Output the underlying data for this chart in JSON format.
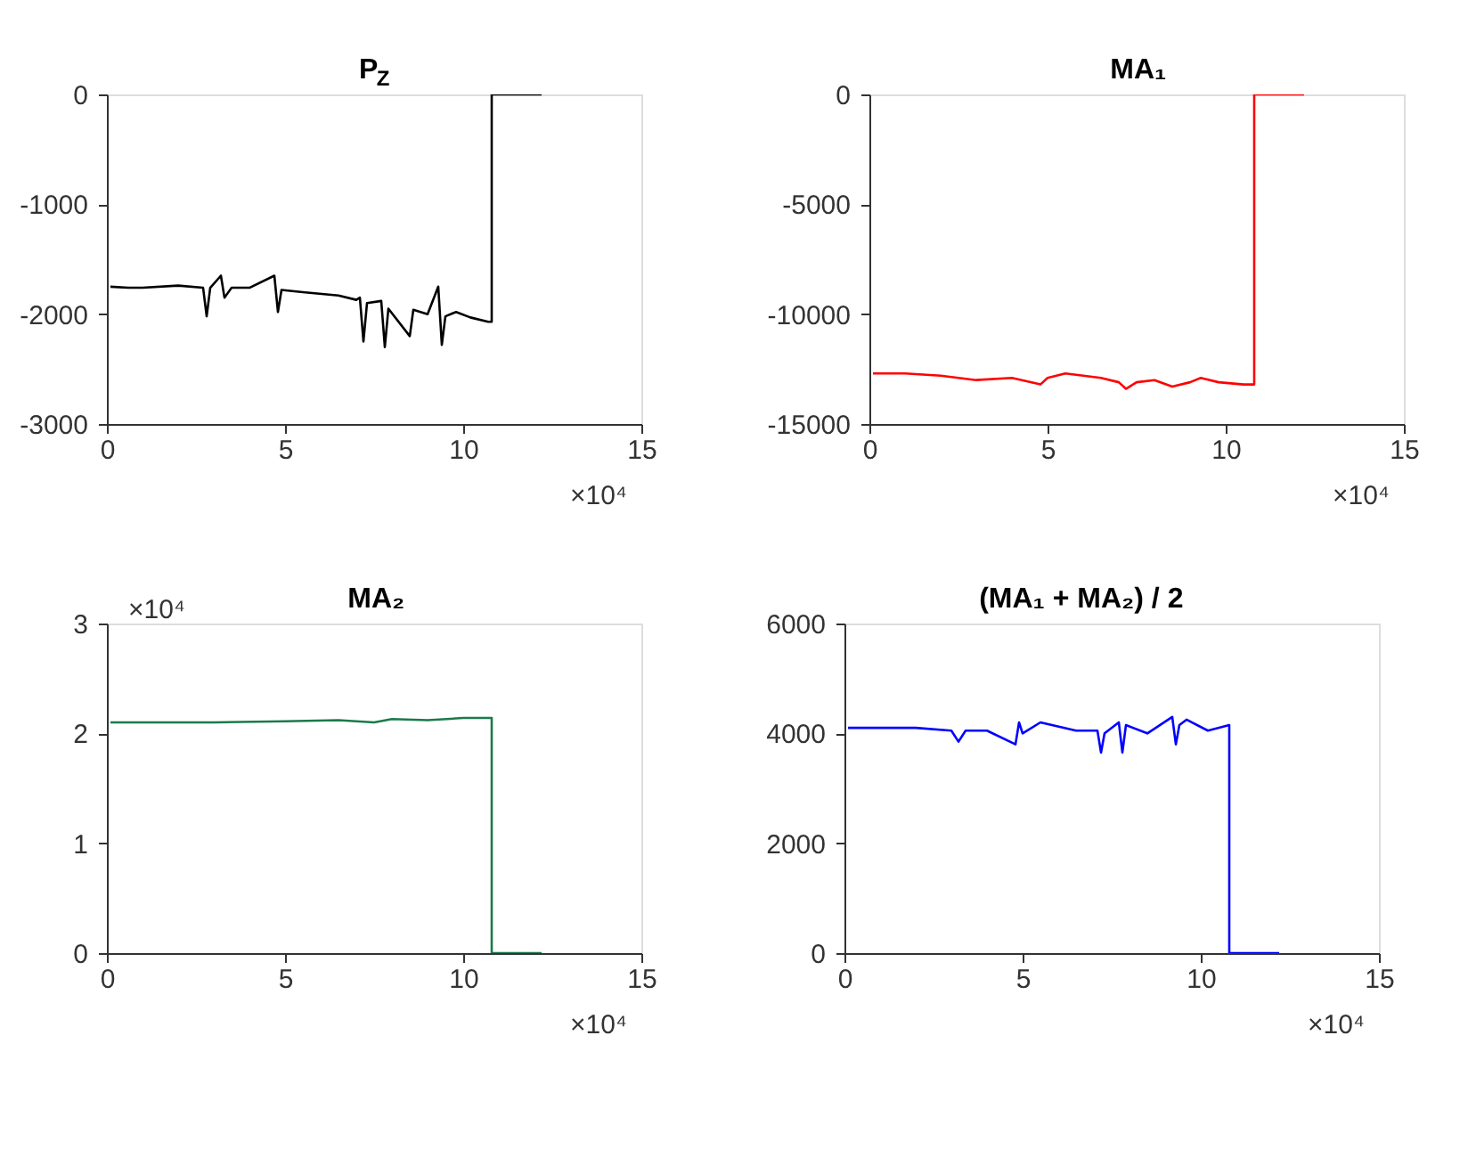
{
  "chart_data": [
    {
      "type": "line",
      "title": "P$_{Z}$",
      "xlim": [
        0,
        15
      ],
      "xticks": [
        0,
        5,
        10,
        15
      ],
      "ylim": [
        -3000,
        0
      ],
      "yticks": [
        -3000,
        -2000,
        -1000,
        0
      ],
      "annotations": [
        "×10⁴"
      ],
      "x": [
        0.1,
        0.6,
        1,
        2,
        2.7,
        2.8,
        2.9,
        3.2,
        3.3,
        3.5,
        4,
        4.7,
        4.8,
        4.9,
        5.5,
        6.5,
        7,
        7.1,
        7.2,
        7.3,
        7.7,
        7.8,
        7.9,
        8.5,
        8.6,
        9,
        9.3,
        9.4,
        9.5,
        9.8,
        10.2,
        10.7,
        10.8,
        10.8,
        12.2
      ],
      "series": [
        {
          "color": "#000000",
          "values": [
            -1750,
            -1760,
            -1760,
            -1740,
            -1760,
            -2020,
            -1760,
            -1650,
            -1850,
            -1760,
            -1760,
            -1650,
            -1980,
            -1780,
            -1800,
            -1830,
            -1870,
            -1850,
            -2250,
            -1900,
            -1880,
            -2300,
            -1950,
            -2200,
            -1960,
            -2000,
            -1750,
            -2280,
            -2020,
            -1980,
            -2030,
            -2070,
            -2070,
            0,
            0
          ]
        }
      ]
    },
    {
      "type": "line",
      "title": "MA₁",
      "xlim": [
        0,
        15
      ],
      "xticks": [
        0,
        5,
        10,
        15
      ],
      "ylim": [
        -15000,
        0
      ],
      "yticks": [
        -15000,
        -10000,
        -5000,
        0
      ],
      "annotations": [
        "×10⁴"
      ],
      "x": [
        0.1,
        1,
        2,
        3,
        4,
        4.8,
        5,
        5.5,
        6.5,
        7,
        7.2,
        7.5,
        8,
        8.5,
        9,
        9.3,
        9.8,
        10.5,
        10.8,
        10.8,
        12.2
      ],
      "series": [
        {
          "color": "#ff0000",
          "values": [
            -12700,
            -12700,
            -12800,
            -13000,
            -12900,
            -13200,
            -12900,
            -12700,
            -12900,
            -13100,
            -13400,
            -13100,
            -13000,
            -13300,
            -13100,
            -12900,
            -13100,
            -13200,
            -13200,
            0,
            0
          ]
        }
      ]
    },
    {
      "type": "line",
      "title": "MA₂",
      "xlim": [
        0,
        15
      ],
      "xticks": [
        0,
        5,
        10,
        15
      ],
      "ylim": [
        0,
        3
      ],
      "yticks": [
        0,
        1,
        2,
        3
      ],
      "annotations": [
        "×10⁴",
        "×10⁴"
      ],
      "x": [
        0.1,
        1,
        3,
        5,
        6.5,
        7.5,
        8,
        9,
        10,
        10.8,
        10.8,
        12.2
      ],
      "series": [
        {
          "color": "#1a7a4a",
          "values": [
            2.1,
            2.1,
            2.1,
            2.11,
            2.12,
            2.1,
            2.13,
            2.12,
            2.14,
            2.14,
            0,
            0
          ]
        }
      ]
    },
    {
      "type": "line",
      "title": "(MA₁ + MA₂) / 2",
      "xlim": [
        0,
        15
      ],
      "xticks": [
        0,
        5,
        10,
        15
      ],
      "ylim": [
        0,
        6000
      ],
      "yticks": [
        0,
        2000,
        4000,
        6000
      ],
      "annotations": [
        "×10⁴"
      ],
      "x": [
        0.1,
        1,
        2,
        3,
        3.2,
        3.4,
        4,
        4.8,
        4.9,
        5,
        5.5,
        6.5,
        7.1,
        7.2,
        7.3,
        7.7,
        7.8,
        7.9,
        8.5,
        9.2,
        9.3,
        9.4,
        9.6,
        10.2,
        10.8,
        10.8,
        12.2
      ],
      "series": [
        {
          "color": "#0000ff",
          "values": [
            4100,
            4100,
            4100,
            4050,
            3850,
            4050,
            4050,
            3800,
            4200,
            4000,
            4200,
            4050,
            4050,
            3650,
            4000,
            4200,
            3650,
            4150,
            4000,
            4300,
            3800,
            4150,
            4250,
            4050,
            4150,
            0,
            0
          ]
        }
      ]
    }
  ]
}
